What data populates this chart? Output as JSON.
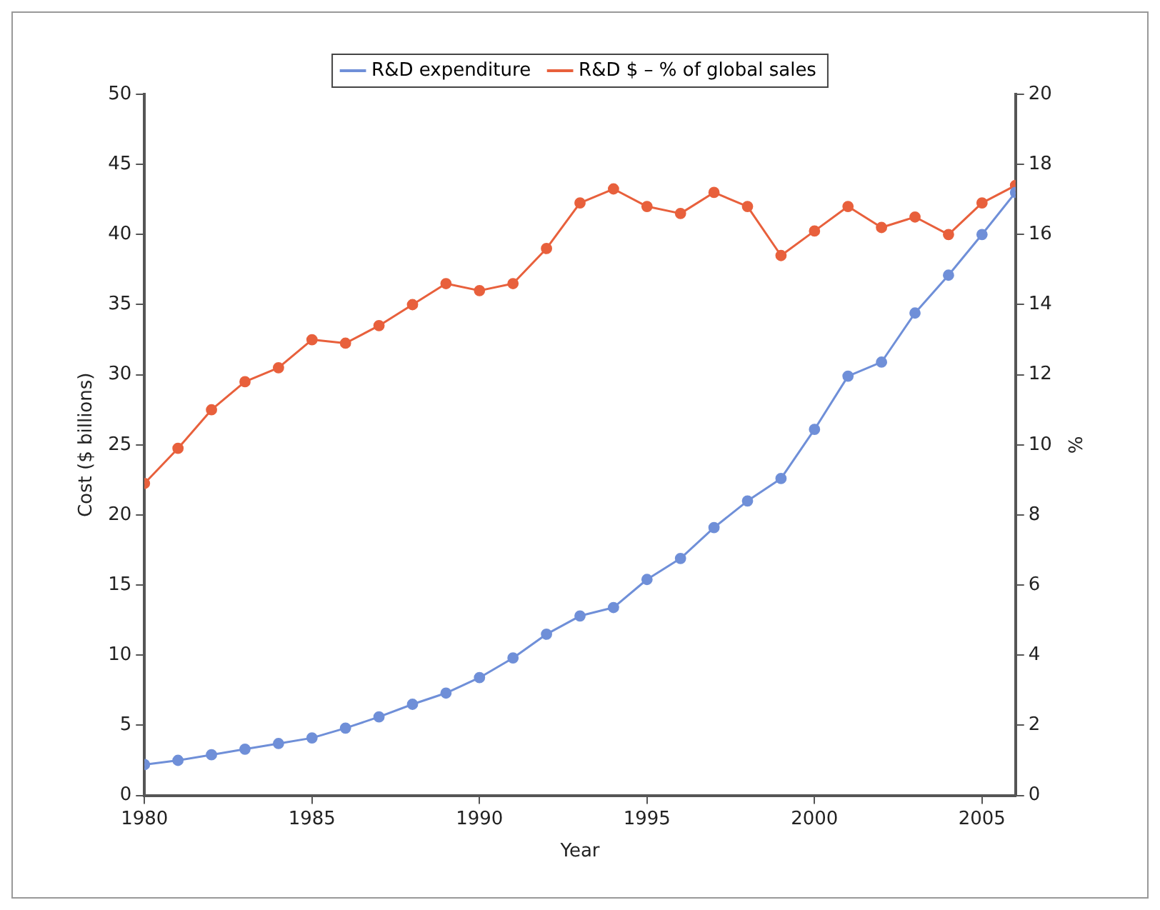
{
  "chart_data": {
    "type": "line",
    "xlabel": "Year",
    "ylabel": "Cost ($ billions)",
    "y2label": "%",
    "x": [
      1980,
      1981,
      1982,
      1983,
      1984,
      1985,
      1986,
      1987,
      1988,
      1989,
      1990,
      1991,
      1992,
      1993,
      1994,
      1995,
      1996,
      1997,
      1998,
      1999,
      2000,
      2001,
      2002,
      2003,
      2004,
      2005,
      2006
    ],
    "series": [
      {
        "name": "R&D expenditure",
        "color": "#6f8fd8",
        "values": [
          2.2,
          2.5,
          2.9,
          3.3,
          3.7,
          4.1,
          4.8,
          5.6,
          6.5,
          7.3,
          8.4,
          9.8,
          11.5,
          12.8,
          13.4,
          15.4,
          16.9,
          19.1,
          21.0,
          22.6,
          26.1,
          29.9,
          30.9,
          34.4,
          37.1,
          40.0,
          43.0
        ]
      },
      {
        "name": "R&D $ – % of global sales",
        "color": "#e8603c",
        "axis": "y2",
        "values": [
          8.9,
          9.9,
          11.0,
          11.8,
          12.2,
          13.0,
          12.9,
          13.4,
          14.0,
          14.6,
          14.4,
          14.6,
          15.6,
          16.9,
          17.3,
          16.8,
          16.6,
          17.2,
          16.8,
          15.4,
          16.1,
          16.8,
          16.2,
          16.5,
          16.0,
          16.9,
          17.4
        ]
      }
    ],
    "xlim": [
      1980,
      2006
    ],
    "xticks": [
      1980,
      1985,
      1990,
      1995,
      2000,
      2005
    ],
    "ylim": [
      0,
      50
    ],
    "yticks": [
      0,
      5,
      10,
      15,
      20,
      25,
      30,
      35,
      40,
      45,
      50
    ],
    "y2lim": [
      0,
      20
    ],
    "y2ticks": [
      0,
      2,
      4,
      6,
      8,
      10,
      12,
      14,
      16,
      18,
      20
    ],
    "grid": false,
    "legend": "top",
    "marker": "circle",
    "line_style": "solid"
  }
}
